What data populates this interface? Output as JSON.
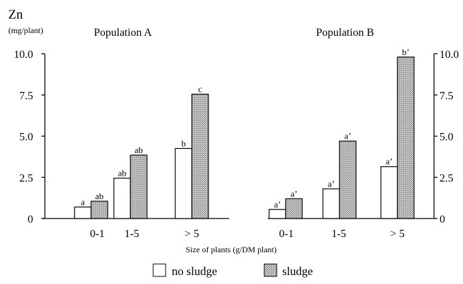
{
  "header": {
    "element": "Zn",
    "unit": "(mg/plant)"
  },
  "footer": {
    "xlabel": "Size of plants (g/DM plant)"
  },
  "legend": {
    "no_sludge": "no sludge",
    "sludge": "sludge"
  },
  "colors": {
    "no_sludge_fill": "#ffffff",
    "sludge_fill": "#b8b8b8",
    "stroke": "#000000"
  },
  "chart_data": [
    {
      "type": "bar",
      "title": "Population A",
      "categories": [
        "0-1",
        "1-5",
        "> 5"
      ],
      "series": [
        {
          "name": "no sludge",
          "values": [
            0.7,
            2.45,
            4.25
          ],
          "labels": [
            "a",
            "ab",
            "b"
          ]
        },
        {
          "name": "sludge",
          "values": [
            1.05,
            3.85,
            7.55
          ],
          "labels": [
            "ab",
            "ab",
            "c"
          ]
        }
      ],
      "ylim": [
        0,
        10
      ],
      "yticks": [
        "0",
        "2.5",
        "5.0",
        "7.5",
        "10.0"
      ],
      "yaxis_side": "left"
    },
    {
      "type": "bar",
      "title": "Population B",
      "categories": [
        "0-1",
        "1-5",
        "> 5"
      ],
      "series": [
        {
          "name": "no sludge",
          "values": [
            0.55,
            1.8,
            3.15
          ],
          "labels": [
            "a’",
            "a’",
            "a’"
          ]
        },
        {
          "name": "sludge",
          "values": [
            1.2,
            4.7,
            9.8
          ],
          "labels": [
            "a’",
            "a’",
            "b’"
          ]
        }
      ],
      "ylim": [
        0,
        10
      ],
      "yticks": [
        "0",
        "2.5",
        "5.0",
        "7.5",
        "10.0"
      ],
      "yaxis_side": "right"
    }
  ]
}
